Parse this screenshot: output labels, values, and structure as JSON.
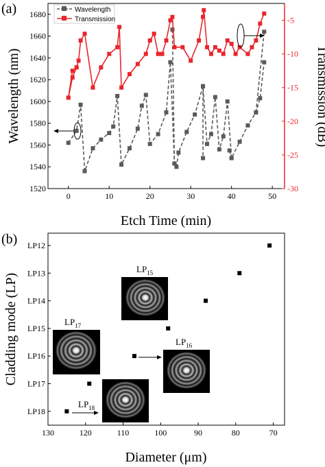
{
  "panels": {
    "a_label": "(a)",
    "b_label": "(b)"
  },
  "chart_data": [
    {
      "type": "line",
      "xlabel": "Etch Time (min)",
      "ylabel": "Wavelength (nm)",
      "y2label": "Transmission (dB)",
      "xlim": [
        -5,
        53
      ],
      "ylim": [
        1520,
        1690
      ],
      "y2lim": [
        -30,
        -2.5
      ],
      "xticks": [
        "0",
        "10",
        "20",
        "30",
        "40",
        "50"
      ],
      "yticks": [
        "1520",
        "1540",
        "1560",
        "1580",
        "1600",
        "1620",
        "1640",
        "1660",
        "1680"
      ],
      "y2ticks": [
        "-30",
        "-25",
        "-20",
        "-15",
        "-10",
        "-5"
      ],
      "legend": {
        "placement": "top-left",
        "entries": [
          "Wavelength",
          "Transmission"
        ]
      },
      "colors": {
        "wavelength": "#5a5a5a",
        "transmission": "#e8262d"
      },
      "series": [
        {
          "name": "Wavelength",
          "axis": "left",
          "segments": [
            [
              [
                0,
                1562
              ],
              [
                2,
                1573
              ],
              [
                3,
                1597
              ],
              [
                4,
                1536
              ],
              [
                6,
                1557
              ],
              [
                8,
                1565
              ],
              [
                10,
                1571
              ],
              [
                11,
                1577
              ],
              [
                12,
                1605
              ],
              [
                13,
                1542
              ],
              [
                15,
                1557
              ],
              [
                17,
                1575
              ],
              [
                18,
                1596
              ],
              [
                19,
                1606
              ],
              [
                20,
                1561
              ],
              [
                22,
                1570
              ],
              [
                24,
                1590
              ],
              [
                25,
                1636
              ],
              [
                26,
                1543
              ],
              [
                26.5,
                1540
              ],
              [
                27,
                1553
              ],
              [
                29,
                1572
              ],
              [
                31,
                1588
              ],
              [
                33,
                1614
              ],
              [
                34,
                1561
              ],
              [
                35,
                1570
              ],
              [
                36,
                1604
              ],
              [
                37,
                1556
              ],
              [
                38,
                1568
              ],
              [
                39,
                1600
              ],
              [
                40,
                1548
              ],
              [
                42,
                1563
              ],
              [
                44,
                1578
              ],
              [
                46,
                1590
              ],
              [
                47,
                1603
              ],
              [
                48,
                1636
              ]
            ],
            [
              [
                25.5,
                1666
              ],
              [
                26,
                1543
              ]
            ],
            [
              [
                33,
                1614
              ],
              [
                33,
                1548
              ]
            ],
            [
              [
                39.5,
                1555
              ],
              [
                40,
                1548
              ]
            ],
            [
              [
                46,
                1590
              ],
              [
                48,
                1664
              ]
            ]
          ]
        },
        {
          "name": "Transmission",
          "axis": "right",
          "segments": [
            [
              [
                0,
                -16.5
              ],
              [
                1,
                -12.5
              ],
              [
                2,
                -12
              ],
              [
                2.5,
                -11
              ],
              [
                3,
                -8
              ],
              [
                4,
                -7
              ],
              [
                6,
                -15
              ],
              [
                8,
                -12
              ],
              [
                10,
                -10
              ],
              [
                12,
                -9
              ],
              [
                12.5,
                -6
              ],
              [
                13,
                -15
              ],
              [
                15,
                -13
              ],
              [
                17,
                -11.5
              ],
              [
                19,
                -10
              ],
              [
                20,
                -8
              ],
              [
                21,
                -7
              ],
              [
                22,
                -10
              ],
              [
                23,
                -10
              ],
              [
                24,
                -8
              ],
              [
                25,
                -5
              ],
              [
                25.5,
                -4.5
              ],
              [
                26,
                -9
              ],
              [
                28,
                -9
              ],
              [
                30,
                -11
              ],
              [
                32,
                -8
              ],
              [
                33,
                -4.5
              ],
              [
                33.2,
                -3.5
              ],
              [
                34,
                -9
              ],
              [
                35,
                -10
              ],
              [
                36,
                -9
              ],
              [
                37,
                -9.5
              ],
              [
                38,
                -10
              ],
              [
                39,
                -8
              ],
              [
                40,
                -8.5
              ],
              [
                41,
                -10
              ],
              [
                42,
                -9
              ],
              [
                44,
                -10
              ],
              [
                45,
                -9
              ],
              [
                46,
                -8
              ],
              [
                47,
                -5.5
              ],
              [
                48,
                -4
              ]
            ],
            [
              [
                0,
                -16.5
              ],
              [
                1,
                -13.5
              ],
              [
                2,
                -12
              ]
            ]
          ]
        }
      ]
    },
    {
      "type": "scatter",
      "xlabel": "Diameter (μm)",
      "ylabel": "Cladding mode (LP)",
      "x_reversed": true,
      "xlim": [
        130,
        67
      ],
      "xticks": [
        "130",
        "120",
        "110",
        "100",
        "90",
        "80",
        "70"
      ],
      "yticks": [
        "LP12",
        "LP13",
        "LP14",
        "LP15",
        "LP16",
        "LP17",
        "LP18"
      ],
      "points": [
        {
          "x": 125,
          "mode": "LP18"
        },
        {
          "x": 119,
          "mode": "LP17"
        },
        {
          "x": 107,
          "mode": "LP16"
        },
        {
          "x": 98,
          "mode": "LP15"
        },
        {
          "x": 88,
          "mode": "LP14"
        },
        {
          "x": 79,
          "mode": "LP13"
        },
        {
          "x": 71,
          "mode": "LP12"
        }
      ],
      "insets": [
        {
          "label_main": "LP",
          "label_sub": "17"
        },
        {
          "label_main": "LP",
          "label_sub": "15"
        },
        {
          "label_main": "LP",
          "label_sub": "16"
        },
        {
          "label_main": "LP",
          "label_sub": "18"
        }
      ]
    }
  ]
}
